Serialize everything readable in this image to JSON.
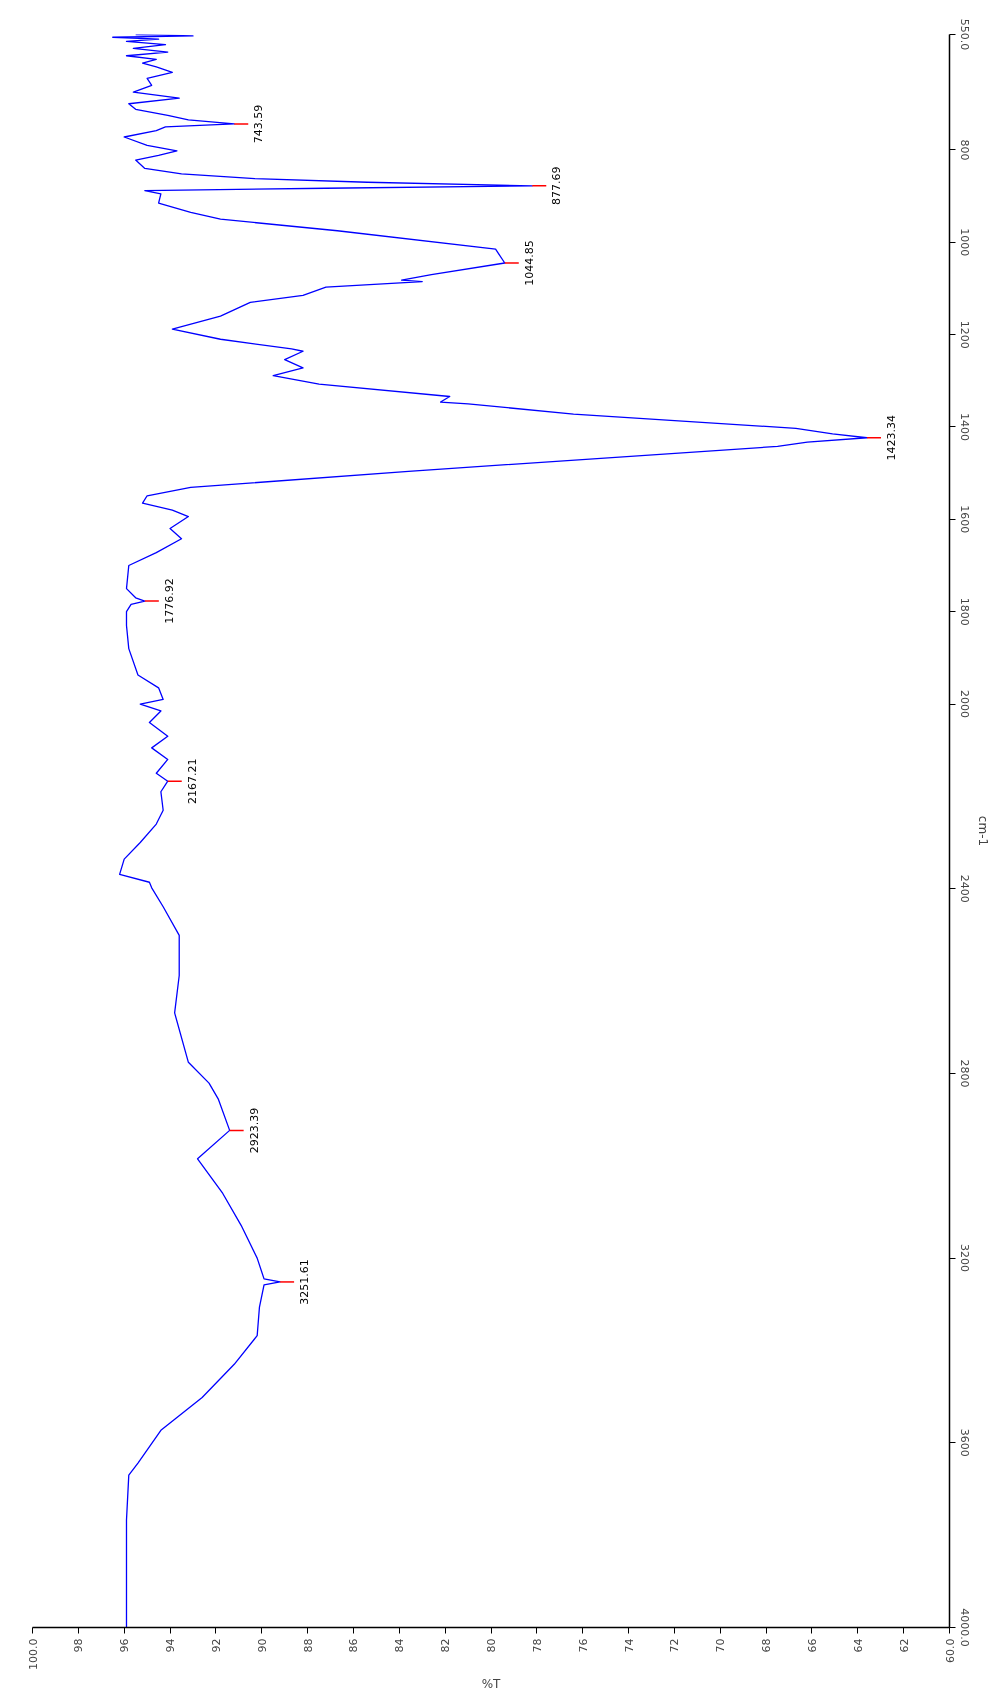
{
  "chart_data": {
    "type": "line",
    "xlabel": "%T",
    "ylabel": "cm-1",
    "xlim": [
      100,
      60
    ],
    "xticks": [
      {
        "value": 60,
        "label": "60.0"
      },
      62,
      64,
      66,
      68,
      70,
      72,
      74,
      76,
      78,
      80,
      82,
      84,
      86,
      88,
      90,
      92,
      94,
      96,
      98,
      {
        "value": 100,
        "label": "100.0"
      }
    ],
    "ylim": [
      4000,
      550
    ],
    "yticks": [
      {
        "value": 550,
        "label": "550.0"
      },
      800,
      1000,
      1200,
      1400,
      1600,
      1800,
      2000,
      2400,
      2800,
      3200,
      3600,
      {
        "value": 4000,
        "label": "4000.0"
      }
    ],
    "series": [
      {
        "color": "#0000ff",
        "x": [
          95.5,
          93.0,
          96.5,
          94.5,
          95.9,
          94.2,
          95.6,
          94.1,
          95.9,
          94.6,
          95.2,
          94.6,
          93.9,
          95.0,
          94.8,
          95.6,
          93.6,
          95.8,
          95.5,
          94.1,
          93.2,
          91.2,
          94.2,
          94.6,
          96.0,
          95.0,
          93.7,
          94.5,
          95.5,
          95.1,
          93.5,
          90.3,
          85.4,
          78.2,
          87.2,
          95.1,
          94.4,
          94.5,
          93.1,
          91.8,
          86.7,
          79.8,
          79.4,
          82.6,
          83.9,
          83.0,
          87.2,
          88.2,
          90.5,
          91.8,
          93.9,
          91.8,
          88.7,
          88.2,
          89.0,
          88.2,
          89.5,
          87.5,
          81.8,
          82.2,
          81.0,
          76.4,
          66.7,
          65.1,
          63.6,
          66.2,
          67.5,
          83.6,
          93.1,
          95.0,
          95.2,
          93.9,
          93.2,
          94.0,
          93.5,
          94.6,
          95.8,
          95.9,
          95.5,
          95.1,
          95.7,
          95.9,
          95.9,
          95.8,
          95.4,
          94.5,
          94.3,
          95.3,
          94.4,
          94.9,
          94.1,
          94.8,
          94.1,
          94.6,
          94.1,
          94.4,
          94.3,
          94.6,
          95.3,
          96.0,
          96.2,
          94.9,
          94.8,
          94.3,
          93.6,
          93.6,
          93.8,
          93.2,
          92.3,
          91.9,
          91.4,
          92.8,
          91.7,
          90.9,
          90.2,
          89.9,
          89.2,
          89.9,
          90.1,
          90.2,
          91.2,
          92.6,
          94.4,
          95.4,
          95.8,
          95.9,
          95.9,
          95.9
        ],
        "values": [
          550,
          553,
          556,
          560,
          565,
          572,
          580,
          588,
          596,
          604,
          612,
          620,
          632,
          645,
          660,
          675,
          688,
          700,
          712,
          725,
          735,
          743.59,
          750,
          758,
          772,
          790,
          802,
          812,
          822,
          840,
          852,
          862,
          870,
          877.69,
          883,
          888,
          895,
          915,
          935,
          950,
          975,
          1015,
          1044.85,
          1070,
          1082,
          1085,
          1097,
          1115,
          1130,
          1160,
          1188,
          1210,
          1231,
          1236,
          1254,
          1272,
          1289,
          1307,
          1334,
          1346,
          1350,
          1372,
          1403,
          1415,
          1423.34,
          1433,
          1442,
          1496,
          1531,
          1549,
          1565,
          1580,
          1594,
          1620,
          1642,
          1672,
          1700,
          1750,
          1770,
          1776.92,
          1784,
          1800,
          1830,
          1880,
          1937,
          1965,
          1990,
          2000,
          2015,
          2040,
          2070,
          2095,
          2120,
          2150,
          2167.21,
          2190,
          2230,
          2260,
          2300,
          2336,
          2369,
          2386,
          2398,
          2439,
          2501,
          2588,
          2669,
          2776,
          2821,
          2855,
          2923.39,
          2985,
          3060,
          3129,
          3200,
          3245,
          3251.61,
          3258,
          3306,
          3368,
          3430,
          3502,
          3573,
          3644,
          3670,
          3767,
          3910,
          4000
        ]
      }
    ],
    "annotations": [
      {
        "text": "743.59",
        "x": 91.2,
        "y": 743.59
      },
      {
        "text": "877.69",
        "x": 78.2,
        "y": 877.69
      },
      {
        "text": "1044.85",
        "x": 79.4,
        "y": 1044.85
      },
      {
        "text": "1423.34",
        "x": 63.6,
        "y": 1423.34
      },
      {
        "text": "1776.92",
        "x": 95.1,
        "y": 1776.92
      },
      {
        "text": "2167.21",
        "x": 94.1,
        "y": 2167.21
      },
      {
        "text": "2923.39",
        "x": 91.4,
        "y": 2923.39
      },
      {
        "text": "3251.61",
        "x": 89.2,
        "y": 3251.61
      }
    ]
  }
}
